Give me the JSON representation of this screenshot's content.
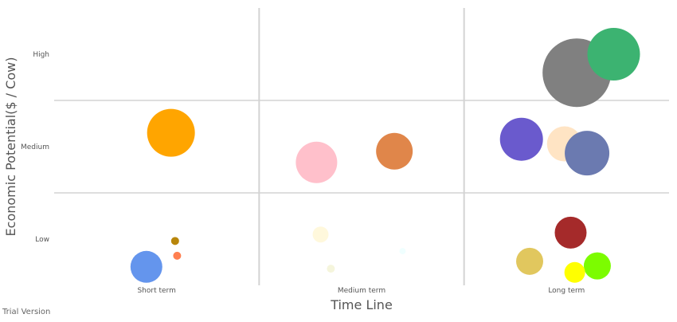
{
  "chart_data": {
    "type": "scatter",
    "title": "",
    "xlabel": "Time Line",
    "ylabel": "Economic Potential($ / Cow)",
    "xlim": [
      0,
      3
    ],
    "ylim": [
      0,
      3
    ],
    "x_ticks": [
      {
        "value": 0.5,
        "label": "Short term"
      },
      {
        "value": 1.5,
        "label": "Medium term"
      },
      {
        "value": 2.5,
        "label": "Long term"
      }
    ],
    "y_ticks": [
      {
        "value": 0.5,
        "label": "Low"
      },
      {
        "value": 1.5,
        "label": "Medium"
      },
      {
        "value": 2.5,
        "label": "High"
      }
    ],
    "grid": {
      "vertical": [
        1,
        2
      ],
      "horizontal": [
        1,
        2
      ]
    },
    "points": [
      {
        "x": 0.57,
        "y": 1.65,
        "size": 30,
        "color": "#FFA500"
      },
      {
        "x": 0.59,
        "y": 0.48,
        "size": 5,
        "color": "#B8860B"
      },
      {
        "x": 0.6,
        "y": 0.32,
        "size": 5,
        "color": "#FF7F50"
      },
      {
        "x": 0.45,
        "y": 0.2,
        "size": 20,
        "color": "#6495ED"
      },
      {
        "x": 1.28,
        "y": 1.33,
        "size": 26,
        "color": "#FFC0CB"
      },
      {
        "x": 1.66,
        "y": 1.45,
        "size": 23,
        "color": "#E0864A"
      },
      {
        "x": 1.3,
        "y": 0.55,
        "size": 10,
        "color": "#FFF8DC"
      },
      {
        "x": 1.35,
        "y": 0.18,
        "size": 5,
        "color": "#F5F5DC"
      },
      {
        "x": 1.7,
        "y": 0.37,
        "size": 4,
        "color": "#F0FFFF"
      },
      {
        "x": 2.55,
        "y": 2.3,
        "size": 43,
        "color": "#808080"
      },
      {
        "x": 2.73,
        "y": 2.5,
        "size": 33,
        "color": "#3CB371"
      },
      {
        "x": 2.28,
        "y": 1.58,
        "size": 27,
        "color": "#6A5ACD"
      },
      {
        "x": 2.49,
        "y": 1.53,
        "size": 22,
        "color": "#FFE4C4"
      },
      {
        "x": 2.6,
        "y": 1.43,
        "size": 28,
        "color": "#6B7AB0"
      },
      {
        "x": 2.52,
        "y": 0.57,
        "size": 20,
        "color": "#A52A2A"
      },
      {
        "x": 2.32,
        "y": 0.26,
        "size": 17,
        "color": "#E1C75E"
      },
      {
        "x": 2.65,
        "y": 0.21,
        "size": 17,
        "color": "#7CFC00"
      },
      {
        "x": 2.54,
        "y": 0.14,
        "size": 13,
        "color": "#FFFF00"
      }
    ]
  },
  "watermark": "Trial Version"
}
